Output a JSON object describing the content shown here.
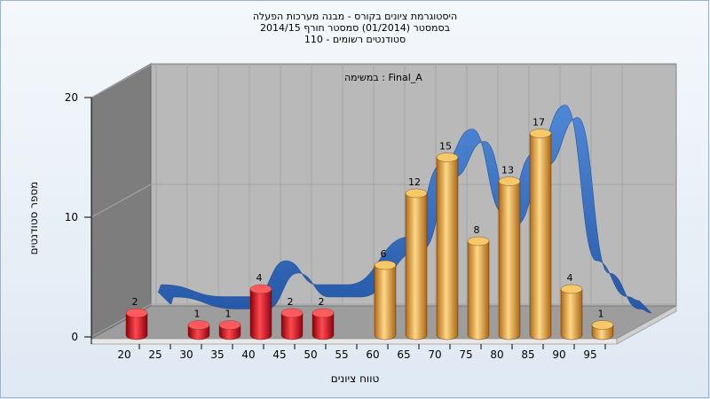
{
  "titles": [
    "היסטוגרמת ציונים בקורס - מבנה מערכות הפעלה",
    "בסמסטר  (01/2014)  סמסטר חורף 2014/15",
    "סטודנטים רשומים - 110"
  ],
  "chart_data": {
    "type": "bar",
    "annotation": "Final_A : במשימה",
    "xlabel": "טווח ציונים",
    "ylabel": "מספר סטודנטים",
    "ylim": [
      0,
      20
    ],
    "yticks": [
      0,
      10,
      20
    ],
    "xticks": [
      20,
      25,
      30,
      35,
      40,
      45,
      50,
      55,
      60,
      65,
      70,
      75,
      80,
      85,
      90,
      95
    ],
    "series": [
      {
        "x": [
          20,
          30,
          35,
          40,
          45,
          50,
          60,
          65,
          70,
          75,
          80,
          85,
          90,
          95
        ],
        "values": [
          2,
          1,
          1,
          4,
          2,
          2,
          6,
          12,
          15,
          8,
          13,
          17,
          4,
          1
        ]
      }
    ],
    "bar_colors": [
      "red",
      "red",
      "red",
      "red",
      "red",
      "red",
      "gold",
      "gold",
      "gold",
      "gold",
      "gold",
      "gold",
      "gold",
      "gold"
    ],
    "colors": {
      "red": "#e0141e",
      "gold": "#e0a040",
      "ribbon": "#2e6bc0",
      "wall": "#b8b8b8",
      "side_wall": "#7c7c7c",
      "floor": "#9c9c9c"
    },
    "legend": "none",
    "grid": true
  }
}
